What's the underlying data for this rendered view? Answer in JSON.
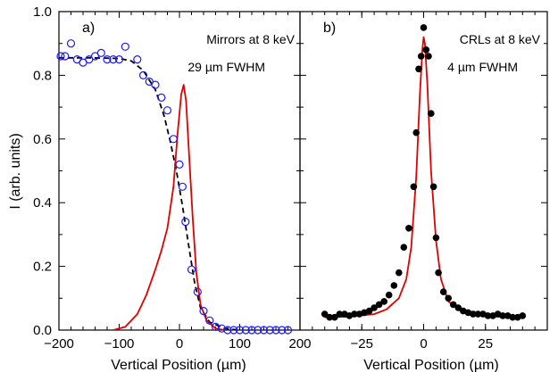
{
  "figure": {
    "ylabel": "I (arb. units)",
    "colors": {
      "red_curve": "#e00000",
      "blue_marker": "#1a1aff",
      "black_marker": "#000000",
      "dashed": "#000000"
    }
  },
  "chart_data": [
    {
      "type": "scatter",
      "panel": "a)",
      "annotation_lines": [
        "Mirrors at 8 keV",
        "29 µm FWHM"
      ],
      "xlabel": "Vertical Position (µm)",
      "ylabel": "I (arb. units)",
      "xlim": [
        -200,
        200
      ],
      "ylim": [
        0,
        1.0
      ],
      "x_ticks": [
        -200,
        -100,
        0,
        100,
        200
      ],
      "x_tick_labels": [
        "−200",
        "−100",
        "0",
        "100",
        "200"
      ],
      "y_ticks": [
        0,
        0.2,
        0.4,
        0.6,
        0.8,
        1.0
      ],
      "y_tick_labels": [
        "0.0",
        "0.2",
        "0.4",
        "0.6",
        "0.8",
        "1.0"
      ],
      "grid": false,
      "series": [
        {
          "kind": "markers",
          "marker": "open-circle",
          "color": "#1a1aff",
          "points": [
            [
              -197,
              0.86
            ],
            [
              -190,
              0.86
            ],
            [
              -180,
              0.9
            ],
            [
              -170,
              0.85
            ],
            [
              -160,
              0.84
            ],
            [
              -150,
              0.85
            ],
            [
              -140,
              0.86
            ],
            [
              -130,
              0.87
            ],
            [
              -120,
              0.85
            ],
            [
              -110,
              0.85
            ],
            [
              -100,
              0.85
            ],
            [
              -90,
              0.89
            ],
            [
              -70,
              0.85
            ],
            [
              -60,
              0.8
            ],
            [
              -50,
              0.78
            ],
            [
              -40,
              0.77
            ],
            [
              -30,
              0.73
            ],
            [
              -20,
              0.69
            ],
            [
              -10,
              0.6
            ],
            [
              0,
              0.52
            ],
            [
              5,
              0.45
            ],
            [
              10,
              0.34
            ],
            [
              20,
              0.19
            ],
            [
              30,
              0.12
            ],
            [
              40,
              0.06
            ],
            [
              50,
              0.03
            ],
            [
              60,
              0.01
            ],
            [
              70,
              0.005
            ],
            [
              80,
              0.0
            ],
            [
              90,
              0.0
            ],
            [
              100,
              0.0
            ],
            [
              110,
              0.0
            ],
            [
              120,
              0.0
            ],
            [
              130,
              0.0
            ],
            [
              140,
              0.0
            ],
            [
              150,
              0.0
            ],
            [
              160,
              0.0
            ],
            [
              170,
              0.0
            ],
            [
              180,
              0.0
            ]
          ]
        },
        {
          "kind": "dashed-line",
          "color": "#000000",
          "points": [
            [
              -200,
              0.855
            ],
            [
              -150,
              0.855
            ],
            [
              -100,
              0.853
            ],
            [
              -80,
              0.845
            ],
            [
              -60,
              0.815
            ],
            [
              -40,
              0.755
            ],
            [
              -25,
              0.67
            ],
            [
              -15,
              0.59
            ],
            [
              -5,
              0.5
            ],
            [
              5,
              0.39
            ],
            [
              15,
              0.27
            ],
            [
              25,
              0.15
            ],
            [
              35,
              0.07
            ],
            [
              50,
              0.025
            ],
            [
              75,
              0.005
            ],
            [
              100,
              0.0
            ]
          ]
        },
        {
          "kind": "line",
          "color": "#e00000",
          "points": [
            [
              -110,
              0.0
            ],
            [
              -90,
              0.01
            ],
            [
              -70,
              0.05
            ],
            [
              -55,
              0.11
            ],
            [
              -40,
              0.19
            ],
            [
              -30,
              0.25
            ],
            [
              -20,
              0.32
            ],
            [
              -10,
              0.45
            ],
            [
              -3,
              0.62
            ],
            [
              3,
              0.74
            ],
            [
              7,
              0.77
            ],
            [
              11,
              0.72
            ],
            [
              16,
              0.55
            ],
            [
              22,
              0.35
            ],
            [
              28,
              0.18
            ],
            [
              35,
              0.08
            ],
            [
              45,
              0.03
            ],
            [
              60,
              0.005
            ],
            [
              75,
              0.0
            ]
          ]
        }
      ]
    },
    {
      "type": "scatter",
      "panel": "b)",
      "annotation_lines": [
        "CRLs at 8 keV",
        "4 µm FWHM"
      ],
      "xlabel": "Vertical Position (µm)",
      "xlim": [
        -50,
        50
      ],
      "ylim": [
        0,
        1.0
      ],
      "x_ticks": [
        -25,
        0,
        25
      ],
      "x_tick_labels": [
        "−25",
        "0",
        "25"
      ],
      "grid": false,
      "series": [
        {
          "kind": "markers",
          "marker": "filled-circle",
          "color": "#000000",
          "points": [
            [
              -40,
              0.05
            ],
            [
              -38,
              0.04
            ],
            [
              -36,
              0.04
            ],
            [
              -34,
              0.05
            ],
            [
              -32,
              0.05
            ],
            [
              -30,
              0.045
            ],
            [
              -28,
              0.05
            ],
            [
              -26,
              0.05
            ],
            [
              -24,
              0.055
            ],
            [
              -22,
              0.06
            ],
            [
              -20,
              0.07
            ],
            [
              -18,
              0.08
            ],
            [
              -16,
              0.09
            ],
            [
              -14,
              0.11
            ],
            [
              -12,
              0.14
            ],
            [
              -10,
              0.18
            ],
            [
              -8,
              0.26
            ],
            [
              -6,
              0.32
            ],
            [
              -4,
              0.45
            ],
            [
              -3,
              0.62
            ],
            [
              -2,
              0.82
            ],
            [
              -1,
              0.86
            ],
            [
              0,
              0.95
            ],
            [
              1,
              0.88
            ],
            [
              2,
              0.86
            ],
            [
              3,
              0.68
            ],
            [
              4,
              0.45
            ],
            [
              5,
              0.29
            ],
            [
              6,
              0.18
            ],
            [
              8,
              0.12
            ],
            [
              10,
              0.1
            ],
            [
              12,
              0.08
            ],
            [
              14,
              0.07
            ],
            [
              16,
              0.06
            ],
            [
              18,
              0.055
            ],
            [
              20,
              0.05
            ],
            [
              22,
              0.05
            ],
            [
              24,
              0.05
            ],
            [
              26,
              0.045
            ],
            [
              28,
              0.045
            ],
            [
              30,
              0.05
            ],
            [
              32,
              0.045
            ],
            [
              34,
              0.045
            ],
            [
              36,
              0.04
            ],
            [
              38,
              0.04
            ],
            [
              40,
              0.045
            ]
          ]
        },
        {
          "kind": "line",
          "color": "#e00000",
          "points": [
            [
              -40,
              0.04
            ],
            [
              -30,
              0.042
            ],
            [
              -20,
              0.05
            ],
            [
              -15,
              0.065
            ],
            [
              -10,
              0.1
            ],
            [
              -7,
              0.16
            ],
            [
              -5,
              0.26
            ],
            [
              -3,
              0.48
            ],
            [
              -1.5,
              0.74
            ],
            [
              -0.5,
              0.88
            ],
            [
              0,
              0.92
            ],
            [
              0.5,
              0.9
            ],
            [
              1.5,
              0.77
            ],
            [
              3,
              0.5
            ],
            [
              5,
              0.28
            ],
            [
              7,
              0.16
            ],
            [
              10,
              0.09
            ],
            [
              15,
              0.06
            ],
            [
              20,
              0.05
            ],
            [
              30,
              0.042
            ],
            [
              40,
              0.04
            ]
          ]
        }
      ]
    }
  ]
}
